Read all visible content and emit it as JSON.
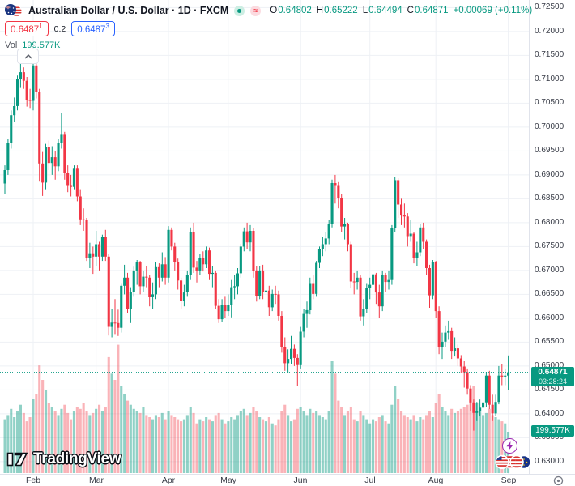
{
  "header": {
    "title": "Australian Dollar / U.S. Dollar · 1D · FXCM",
    "ohlc": {
      "o_label": "O",
      "o": "0.64802",
      "h_label": "H",
      "h": "0.65222",
      "l_label": "L",
      "l": "0.64494",
      "c_label": "C",
      "c": "0.64871",
      "change": "+0.00069 (+0.11%)"
    },
    "quote": {
      "bid": "0.6487",
      "bid_sup": "1",
      "spread": "0.2",
      "ask": "0.6487",
      "ask_sup": "3"
    },
    "volume_row": {
      "label": "Vol",
      "value": "199.577K"
    },
    "status_approx_glyph": "≈"
  },
  "price_axis": {
    "ticks": [
      "0.72500",
      "0.72000",
      "0.71500",
      "0.71000",
      "0.70500",
      "0.70000",
      "0.69500",
      "0.69000",
      "0.68500",
      "0.68000",
      "0.67500",
      "0.67000",
      "0.66500",
      "0.66000",
      "0.65500",
      "0.65000",
      "0.64500",
      "0.64000",
      "0.63500",
      "0.63000"
    ],
    "price_badge": {
      "price": "0.64871",
      "countdown": "03:28:24"
    },
    "volume_badge": "199.577K"
  },
  "time_axis": {
    "months": [
      "Feb",
      "Mar",
      "Apr",
      "May",
      "Jun",
      "Jul",
      "Aug",
      "Sep"
    ]
  },
  "logo": {
    "wordmark": "TradingView"
  },
  "icons": {
    "pair_icon": "aud-usd-flag-circles",
    "status_dot": "market-status-dot",
    "status_approx": "approximate-data-tilde",
    "collapse": "chevron-up",
    "lightning": "lightning-bolt",
    "reactions": "flag-avatars-cluster",
    "gear": "axis-settings-circle-dot"
  },
  "chart_data": {
    "type": "candlestick",
    "symbol": "AUD/USD",
    "interval": "1D",
    "exchange": "FXCM",
    "current_price": 0.64871,
    "price_grid": {
      "min": 0.63,
      "max": 0.725,
      "step": 0.005
    },
    "ylim_visible": [
      0.6249,
      0.7266
    ],
    "x_labels": [
      "Feb",
      "Mar",
      "Apr",
      "May",
      "Jun",
      "Jul",
      "Aug",
      "Sep"
    ],
    "month_start_indices": [
      9,
      29,
      52,
      71,
      94,
      116,
      137,
      160
    ],
    "colors": {
      "up": "#089981",
      "down": "#f23645",
      "vol_up": "rgba(8,153,129,0.45)",
      "vol_down": "rgba(242,54,69,0.38)",
      "grid": "#eef1f5",
      "current_line": "#089981",
      "badge": "#089981",
      "bid": "#f23645",
      "ask": "#2962ff"
    },
    "candles": [
      [
        0.6882,
        0.692,
        0.686,
        0.691
      ],
      [
        0.691,
        0.6975,
        0.69,
        0.6967
      ],
      [
        0.6967,
        0.7035,
        0.6955,
        0.7025
      ],
      [
        0.7025,
        0.7062,
        0.701,
        0.7044
      ],
      [
        0.7044,
        0.7108,
        0.7035,
        0.71
      ],
      [
        0.71,
        0.7143,
        0.7082,
        0.7115
      ],
      [
        0.7115,
        0.7125,
        0.708,
        0.7097
      ],
      [
        0.7097,
        0.7105,
        0.7043,
        0.7057
      ],
      [
        0.7057,
        0.708,
        0.704,
        0.7055
      ],
      [
        0.7055,
        0.7135,
        0.7035,
        0.7129
      ],
      [
        0.7129,
        0.7158,
        0.706,
        0.7074
      ],
      [
        0.7074,
        0.708,
        0.6886,
        0.6924
      ],
      [
        0.6924,
        0.6948,
        0.6856,
        0.6884
      ],
      [
        0.6884,
        0.6965,
        0.687,
        0.6958
      ],
      [
        0.6958,
        0.6972,
        0.691,
        0.6925
      ],
      [
        0.6925,
        0.696,
        0.69,
        0.6937
      ],
      [
        0.6937,
        0.695,
        0.689,
        0.6918
      ],
      [
        0.6918,
        0.6975,
        0.6908,
        0.6966
      ],
      [
        0.6966,
        0.7029,
        0.6955,
        0.6984
      ],
      [
        0.6984,
        0.699,
        0.689,
        0.6905
      ],
      [
        0.6905,
        0.692,
        0.6864,
        0.6877
      ],
      [
        0.6877,
        0.69,
        0.6855,
        0.6875
      ],
      [
        0.6875,
        0.692,
        0.687,
        0.6913
      ],
      [
        0.6913,
        0.692,
        0.6845,
        0.6855
      ],
      [
        0.6855,
        0.687,
        0.6795,
        0.6807
      ],
      [
        0.6807,
        0.683,
        0.6783,
        0.6805
      ],
      [
        0.6805,
        0.681,
        0.672,
        0.6727
      ],
      [
        0.6727,
        0.6758,
        0.6705,
        0.6736
      ],
      [
        0.6736,
        0.675,
        0.6693,
        0.6729
      ],
      [
        0.6729,
        0.6783,
        0.671,
        0.6755
      ],
      [
        0.6755,
        0.676,
        0.67,
        0.6729
      ],
      [
        0.6729,
        0.6775,
        0.672,
        0.677
      ],
      [
        0.677,
        0.6785,
        0.672,
        0.6729
      ],
      [
        0.6729,
        0.6735,
        0.6564,
        0.6582
      ],
      [
        0.6582,
        0.662,
        0.656,
        0.6591
      ],
      [
        0.6591,
        0.664,
        0.6567,
        0.659
      ],
      [
        0.659,
        0.6618,
        0.6563,
        0.658
      ],
      [
        0.658,
        0.6672,
        0.657,
        0.6668
      ],
      [
        0.6668,
        0.6712,
        0.665,
        0.6685
      ],
      [
        0.6685,
        0.6695,
        0.661,
        0.6619
      ],
      [
        0.6619,
        0.6665,
        0.659,
        0.6655
      ],
      [
        0.6655,
        0.6708,
        0.6645,
        0.67
      ],
      [
        0.67,
        0.6722,
        0.667,
        0.6717
      ],
      [
        0.6717,
        0.672,
        0.665,
        0.6667
      ],
      [
        0.6667,
        0.67,
        0.6655,
        0.6687
      ],
      [
        0.6687,
        0.671,
        0.6665,
        0.6685
      ],
      [
        0.6685,
        0.669,
        0.6625,
        0.6644
      ],
      [
        0.6644,
        0.6675,
        0.662,
        0.665
      ],
      [
        0.665,
        0.6717,
        0.664,
        0.6707
      ],
      [
        0.6707,
        0.6715,
        0.6665,
        0.6685
      ],
      [
        0.6685,
        0.6738,
        0.6677,
        0.6713
      ],
      [
        0.6713,
        0.6728,
        0.667,
        0.6685
      ],
      [
        0.6685,
        0.6793,
        0.6675,
        0.6785
      ],
      [
        0.6785,
        0.679,
        0.6742,
        0.675
      ],
      [
        0.675,
        0.6758,
        0.67,
        0.6718
      ],
      [
        0.6718,
        0.6725,
        0.666,
        0.6679
      ],
      [
        0.6679,
        0.6685,
        0.662,
        0.6636
      ],
      [
        0.6636,
        0.667,
        0.6625,
        0.6654
      ],
      [
        0.6654,
        0.67,
        0.6645,
        0.669
      ],
      [
        0.669,
        0.679,
        0.668,
        0.678
      ],
      [
        0.678,
        0.68,
        0.6695,
        0.6706
      ],
      [
        0.6706,
        0.672,
        0.6675,
        0.67
      ],
      [
        0.67,
        0.6735,
        0.669,
        0.6727
      ],
      [
        0.6727,
        0.674,
        0.6698,
        0.6713
      ],
      [
        0.6713,
        0.675,
        0.6705,
        0.6742
      ],
      [
        0.6742,
        0.6748,
        0.668,
        0.6693
      ],
      [
        0.6693,
        0.671,
        0.6665,
        0.6695
      ],
      [
        0.6695,
        0.67,
        0.662,
        0.6626
      ],
      [
        0.6626,
        0.664,
        0.659,
        0.6598
      ],
      [
        0.6598,
        0.664,
        0.6592,
        0.6628
      ],
      [
        0.6628,
        0.6645,
        0.66,
        0.6615
      ],
      [
        0.6615,
        0.665,
        0.6605,
        0.6628
      ],
      [
        0.6628,
        0.668,
        0.6602,
        0.6665
      ],
      [
        0.6665,
        0.669,
        0.664,
        0.6667
      ],
      [
        0.6667,
        0.6705,
        0.665,
        0.6694
      ],
      [
        0.6694,
        0.6756,
        0.6685,
        0.675
      ],
      [
        0.675,
        0.679,
        0.674,
        0.6782
      ],
      [
        0.6782,
        0.68,
        0.6745,
        0.6759
      ],
      [
        0.6759,
        0.6795,
        0.674,
        0.6783
      ],
      [
        0.6783,
        0.6788,
        0.6685,
        0.67
      ],
      [
        0.67,
        0.671,
        0.6635,
        0.6646
      ],
      [
        0.6646,
        0.671,
        0.664,
        0.67
      ],
      [
        0.67,
        0.6712,
        0.664,
        0.6655
      ],
      [
        0.6655,
        0.668,
        0.663,
        0.6658
      ],
      [
        0.6658,
        0.6668,
        0.6605,
        0.6623
      ],
      [
        0.6623,
        0.666,
        0.6615,
        0.6651
      ],
      [
        0.6651,
        0.6668,
        0.663,
        0.665
      ],
      [
        0.665,
        0.6658,
        0.6595,
        0.6605
      ],
      [
        0.6605,
        0.6615,
        0.6528,
        0.654
      ],
      [
        0.654,
        0.656,
        0.649,
        0.6506
      ],
      [
        0.6506,
        0.6535,
        0.6485,
        0.6515
      ],
      [
        0.6515,
        0.6563,
        0.6505,
        0.6536
      ],
      [
        0.6536,
        0.6545,
        0.65,
        0.6517
      ],
      [
        0.6517,
        0.6525,
        0.6458,
        0.6502
      ],
      [
        0.6502,
        0.6582,
        0.6495,
        0.6572
      ],
      [
        0.6572,
        0.662,
        0.656,
        0.6609
      ],
      [
        0.6609,
        0.6635,
        0.658,
        0.6617
      ],
      [
        0.6617,
        0.6685,
        0.6608,
        0.6672
      ],
      [
        0.6672,
        0.669,
        0.664,
        0.6651
      ],
      [
        0.6651,
        0.672,
        0.6645,
        0.6716
      ],
      [
        0.6716,
        0.675,
        0.6705,
        0.6744
      ],
      [
        0.6744,
        0.677,
        0.673,
        0.6755
      ],
      [
        0.6755,
        0.678,
        0.674,
        0.6767
      ],
      [
        0.6767,
        0.6805,
        0.6755,
        0.6797
      ],
      [
        0.6797,
        0.689,
        0.679,
        0.6883
      ],
      [
        0.6883,
        0.69,
        0.684,
        0.6877
      ],
      [
        0.6877,
        0.6885,
        0.683,
        0.6851
      ],
      [
        0.6851,
        0.686,
        0.678,
        0.6792
      ],
      [
        0.6792,
        0.681,
        0.6765,
        0.6797
      ],
      [
        0.6797,
        0.68,
        0.674,
        0.6755
      ],
      [
        0.6755,
        0.676,
        0.6663,
        0.6677
      ],
      [
        0.6677,
        0.6695,
        0.665,
        0.6676
      ],
      [
        0.6676,
        0.67,
        0.666,
        0.6685
      ],
      [
        0.6685,
        0.669,
        0.6595,
        0.6604
      ],
      [
        0.6604,
        0.664,
        0.6585,
        0.662
      ],
      [
        0.662,
        0.6672,
        0.661,
        0.6664
      ],
      [
        0.6664,
        0.6685,
        0.664,
        0.667
      ],
      [
        0.667,
        0.67,
        0.6655,
        0.6692
      ],
      [
        0.6692,
        0.6695,
        0.663,
        0.6654
      ],
      [
        0.6654,
        0.667,
        0.66,
        0.6625
      ],
      [
        0.6625,
        0.67,
        0.6615,
        0.669
      ],
      [
        0.669,
        0.6695,
        0.6655,
        0.6676
      ],
      [
        0.6676,
        0.67,
        0.666,
        0.668
      ],
      [
        0.668,
        0.6795,
        0.667,
        0.6788
      ],
      [
        0.6788,
        0.6895,
        0.678,
        0.6889
      ],
      [
        0.6889,
        0.6893,
        0.681,
        0.6838
      ],
      [
        0.6838,
        0.685,
        0.6795,
        0.6815
      ],
      [
        0.6815,
        0.684,
        0.679,
        0.6813
      ],
      [
        0.6813,
        0.682,
        0.675,
        0.6772
      ],
      [
        0.6772,
        0.6805,
        0.676,
        0.6777
      ],
      [
        0.6777,
        0.678,
        0.6715,
        0.6727
      ],
      [
        0.6727,
        0.676,
        0.671,
        0.6738
      ],
      [
        0.6738,
        0.6798,
        0.673,
        0.679
      ],
      [
        0.679,
        0.68,
        0.6745,
        0.676
      ],
      [
        0.676,
        0.6765,
        0.669,
        0.6705
      ],
      [
        0.6705,
        0.6712,
        0.6622,
        0.6648
      ],
      [
        0.6648,
        0.6722,
        0.664,
        0.6717
      ],
      [
        0.6717,
        0.672,
        0.66,
        0.6615
      ],
      [
        0.6615,
        0.6625,
        0.6525,
        0.6539
      ],
      [
        0.6539,
        0.657,
        0.6515,
        0.6551
      ],
      [
        0.6551,
        0.6585,
        0.654,
        0.657
      ],
      [
        0.657,
        0.6595,
        0.6555,
        0.6573
      ],
      [
        0.6573,
        0.658,
        0.6515,
        0.6532
      ],
      [
        0.6532,
        0.656,
        0.652,
        0.6537
      ],
      [
        0.6537,
        0.6545,
        0.65,
        0.6516
      ],
      [
        0.6516,
        0.6523,
        0.6486,
        0.6499
      ],
      [
        0.6499,
        0.651,
        0.6455,
        0.6487
      ],
      [
        0.6487,
        0.6495,
        0.644,
        0.6453
      ],
      [
        0.6453,
        0.646,
        0.6405,
        0.6424
      ],
      [
        0.6424,
        0.643,
        0.6365,
        0.6402
      ],
      [
        0.6402,
        0.6425,
        0.6385,
        0.6405
      ],
      [
        0.6405,
        0.643,
        0.6395,
        0.6413
      ],
      [
        0.6413,
        0.6445,
        0.64,
        0.6424
      ],
      [
        0.6424,
        0.6488,
        0.6415,
        0.648
      ],
      [
        0.648,
        0.649,
        0.641,
        0.6419
      ],
      [
        0.6419,
        0.644,
        0.6385,
        0.6401
      ],
      [
        0.6401,
        0.644,
        0.6395,
        0.6425
      ],
      [
        0.6425,
        0.65,
        0.642,
        0.648
      ],
      [
        0.648,
        0.6505,
        0.646,
        0.6478
      ],
      [
        0.6478,
        0.6495,
        0.646,
        0.648
      ],
      [
        0.64802,
        0.65222,
        0.64494,
        0.64871
      ]
    ],
    "volumes_k": [
      260,
      280,
      310,
      270,
      300,
      330,
      290,
      250,
      270,
      360,
      380,
      520,
      450,
      400,
      340,
      320,
      300,
      280,
      310,
      330,
      290,
      260,
      300,
      320,
      310,
      340,
      300,
      280,
      290,
      310,
      330,
      300,
      320,
      560,
      480,
      450,
      620,
      420,
      380,
      350,
      330,
      310,
      300,
      290,
      320,
      280,
      270,
      260,
      280,
      270,
      290,
      260,
      300,
      280,
      270,
      260,
      250,
      260,
      280,
      320,
      290,
      240,
      260,
      250,
      270,
      260,
      250,
      280,
      290,
      260,
      240,
      250,
      270,
      260,
      280,
      300,
      310,
      280,
      290,
      320,
      300,
      270,
      260,
      250,
      270,
      240,
      230,
      260,
      300,
      330,
      280,
      250,
      260,
      310,
      320,
      300,
      280,
      310,
      290,
      300,
      280,
      270,
      260,
      300,
      540,
      480,
      350,
      320,
      280,
      300,
      320,
      260,
      250,
      300,
      280,
      260,
      240,
      260,
      250,
      270,
      280,
      250,
      240,
      330,
      420,
      360,
      300,
      280,
      270,
      260,
      280,
      250,
      270,
      260,
      280,
      300,
      270,
      340,
      380,
      320,
      300,
      280,
      310,
      290,
      300,
      310,
      320,
      330,
      360,
      420,
      340,
      300,
      280,
      290,
      310,
      280,
      270,
      260,
      250,
      240,
      199.577
    ],
    "last_volume": "199.577K"
  }
}
